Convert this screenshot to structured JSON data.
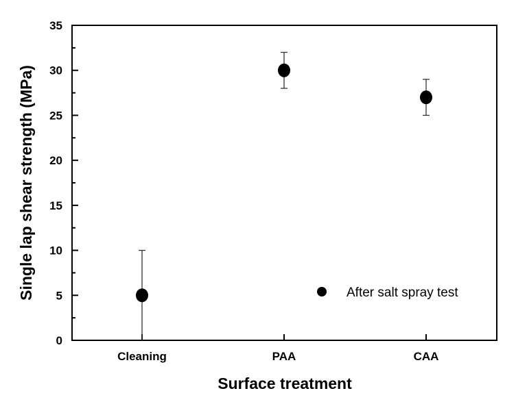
{
  "chart_data": {
    "type": "scatter",
    "title": "",
    "xlabel": "Surface treatment",
    "ylabel": "Single lap shear strength (MPa)",
    "categories": [
      "Cleaning",
      "PAA",
      "CAA"
    ],
    "ylim": [
      0,
      35
    ],
    "yticks": [
      "0",
      "5",
      "10",
      "15",
      "20",
      "25",
      "30",
      "35"
    ],
    "grid": false,
    "legend_position": "bottom-right",
    "series": [
      {
        "name": "After salt spray test",
        "values": [
          5,
          30,
          27
        ],
        "error_low": [
          0,
          28,
          25
        ],
        "error_high": [
          10,
          32,
          29
        ],
        "color": "#000000"
      }
    ]
  }
}
